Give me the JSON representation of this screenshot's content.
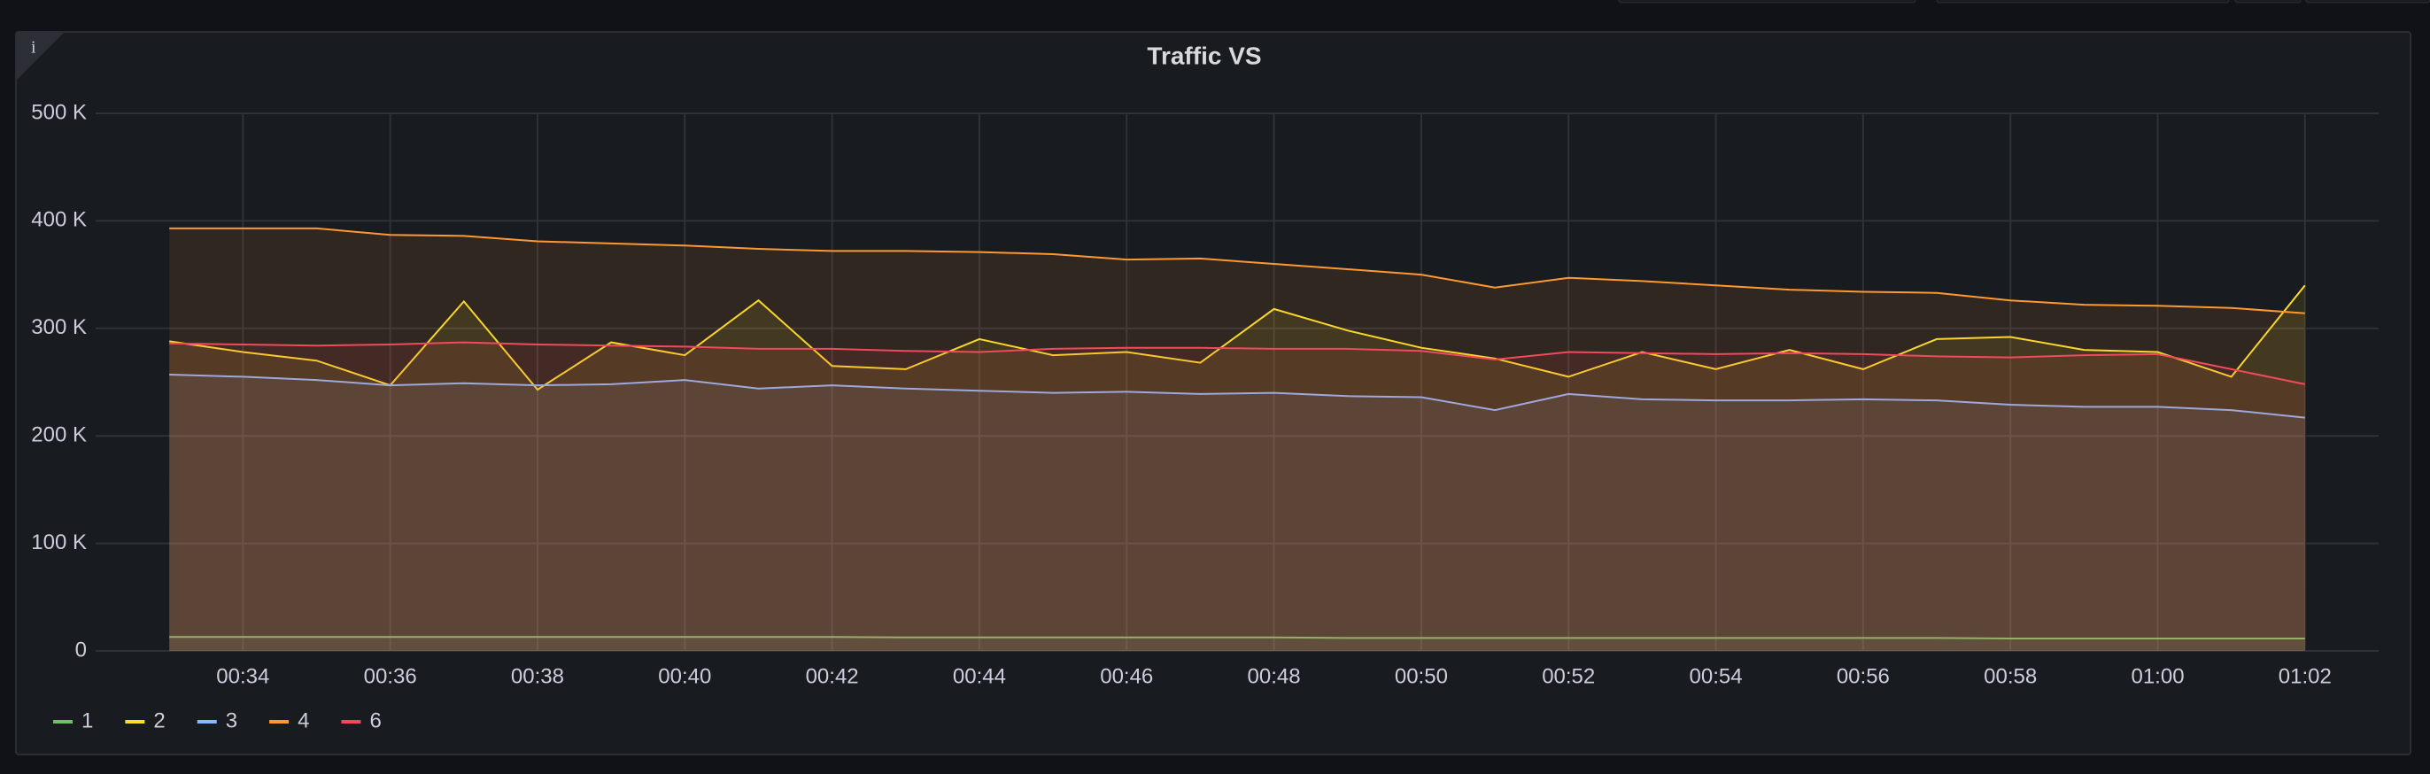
{
  "chart_data": {
    "type": "line",
    "title": "Traffic VS",
    "x": [
      "00:33",
      "00:34",
      "00:35",
      "00:36",
      "00:37",
      "00:38",
      "00:39",
      "00:40",
      "00:41",
      "00:42",
      "00:43",
      "00:44",
      "00:45",
      "00:46",
      "00:47",
      "00:48",
      "00:49",
      "00:50",
      "00:51",
      "00:52",
      "00:53",
      "00:54",
      "00:55",
      "00:56",
      "00:57",
      "00:58",
      "00:59",
      "01:00",
      "01:01",
      "01:02"
    ],
    "xlim": [
      "00:32",
      "01:03"
    ],
    "xticks": [
      "00:34",
      "00:36",
      "00:38",
      "00:40",
      "00:42",
      "00:44",
      "00:46",
      "00:48",
      "00:50",
      "00:52",
      "00:54",
      "00:56",
      "00:58",
      "01:00",
      "01:02"
    ],
    "ylim": [
      0,
      500000
    ],
    "yticks": [
      0,
      {
        "value": 100000,
        "label": "100 K"
      },
      {
        "value": 200000,
        "label": "200 K"
      },
      {
        "value": 300000,
        "label": "300 K"
      },
      {
        "value": 400000,
        "label": "400 K"
      },
      {
        "value": 500000,
        "label": "500 K"
      }
    ],
    "grid": true,
    "legend": "bottom-left",
    "series": [
      {
        "name": "1",
        "color": "#73bf69",
        "values": [
          13000,
          13000,
          13000,
          13000,
          13000,
          13000,
          13000,
          13000,
          13000,
          13000,
          12500,
          12500,
          12500,
          12500,
          12500,
          12500,
          12000,
          12000,
          12000,
          12000,
          12000,
          12000,
          12000,
          12000,
          12000,
          11500,
          11500,
          11500,
          11500,
          11500
        ]
      },
      {
        "name": "2",
        "color": "#fade2a",
        "values": [
          288000,
          278000,
          270000,
          247000,
          325000,
          243000,
          287000,
          275000,
          326000,
          265000,
          262000,
          290000,
          275000,
          278000,
          268000,
          318000,
          298000,
          282000,
          272000,
          255000,
          278000,
          262000,
          280000,
          262000,
          290000,
          292000,
          280000,
          278000,
          255000,
          340000
        ]
      },
      {
        "name": "3",
        "color": "#8ab8ff",
        "values": [
          257000,
          255000,
          252000,
          247000,
          249000,
          247000,
          248000,
          252000,
          244000,
          247000,
          244000,
          242000,
          240000,
          241000,
          239000,
          240000,
          237000,
          236000,
          224000,
          239000,
          234000,
          233000,
          233000,
          234000,
          233000,
          229000,
          227000,
          227000,
          224000,
          217000
        ]
      },
      {
        "name": "4",
        "color": "#ff9830",
        "values": [
          393000,
          393000,
          393000,
          387000,
          386000,
          381000,
          379000,
          377000,
          374000,
          372000,
          372000,
          371000,
          369000,
          364000,
          365000,
          360000,
          355000,
          350000,
          338000,
          347000,
          344000,
          340000,
          336000,
          334000,
          333000,
          326000,
          322000,
          321000,
          319000,
          314000
        ]
      },
      {
        "name": "6",
        "color": "#f2495c",
        "values": [
          286000,
          285000,
          284000,
          285000,
          287000,
          285000,
          284000,
          283000,
          281000,
          281000,
          279000,
          278000,
          281000,
          282000,
          282000,
          281000,
          281000,
          279000,
          271000,
          278000,
          277000,
          276000,
          277000,
          276000,
          274000,
          273000,
          275000,
          276000,
          262000,
          248000
        ]
      }
    ]
  }
}
